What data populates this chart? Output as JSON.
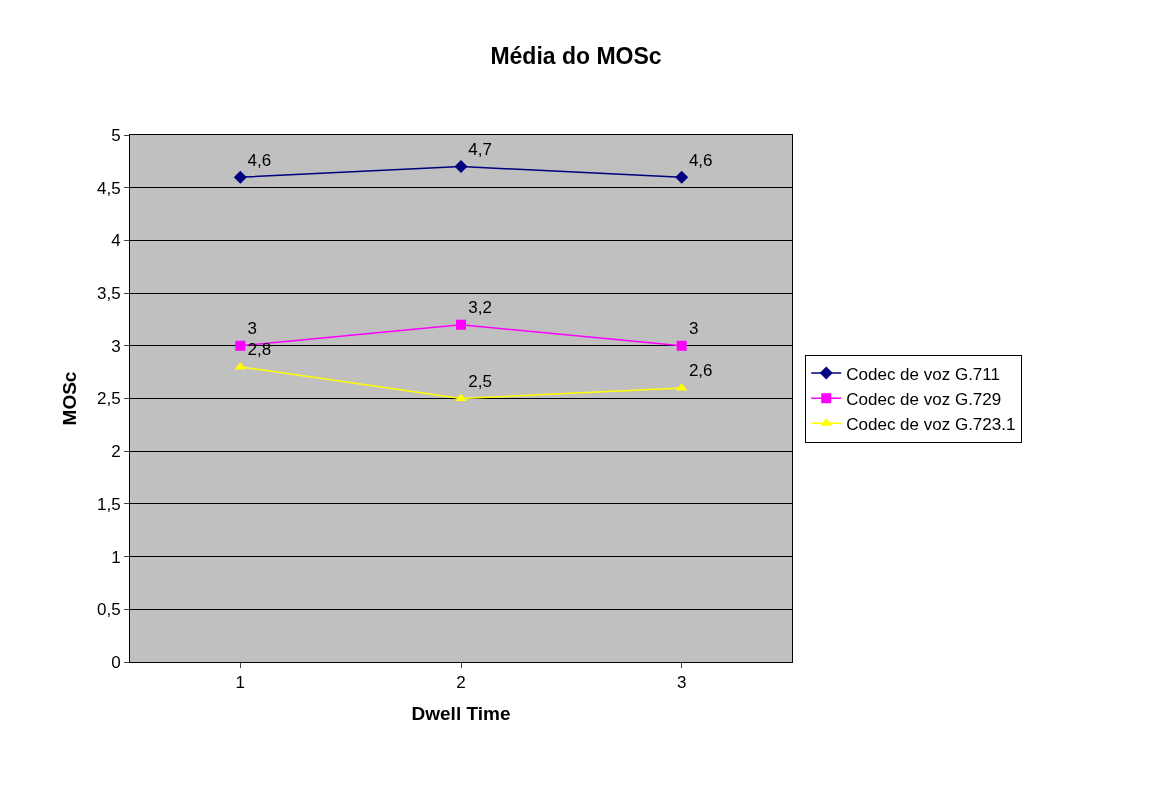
{
  "chart_data": {
    "type": "line",
    "title": "Média do MOSc",
    "xlabel": "Dwell Time",
    "ylabel": "MOSc",
    "categories": [
      "1",
      "2",
      "3"
    ],
    "series": [
      {
        "name": "Codec de voz G.711",
        "color": "#000080",
        "marker": "diamond",
        "values": [
          4.6,
          4.7,
          4.6
        ],
        "value_labels": [
          "4,6",
          "4,7",
          "4,6"
        ]
      },
      {
        "name": "Codec de voz G.729",
        "color": "#ff00ff",
        "marker": "square",
        "values": [
          3,
          3.2,
          3
        ],
        "value_labels": [
          "3",
          "3,2",
          "3"
        ]
      },
      {
        "name": "Codec de voz G.723.1",
        "color": "#ffff00",
        "marker": "triangle",
        "values": [
          2.8,
          2.5,
          2.6
        ],
        "value_labels": [
          "2,8",
          "2,5",
          "2,6"
        ]
      }
    ],
    "ylim": [
      0,
      5
    ],
    "yticks": [
      0,
      {
        "value": 0.5,
        "label": "0,5"
      },
      1,
      {
        "value": 1.5,
        "label": "1,5"
      },
      2,
      {
        "value": 2.5,
        "label": "2,5"
      },
      3,
      {
        "value": 3.5,
        "label": "3,5"
      },
      4,
      {
        "value": 4.5,
        "label": "4,5"
      },
      5
    ],
    "grid": "y",
    "legend": "right",
    "line_style": "solid"
  }
}
